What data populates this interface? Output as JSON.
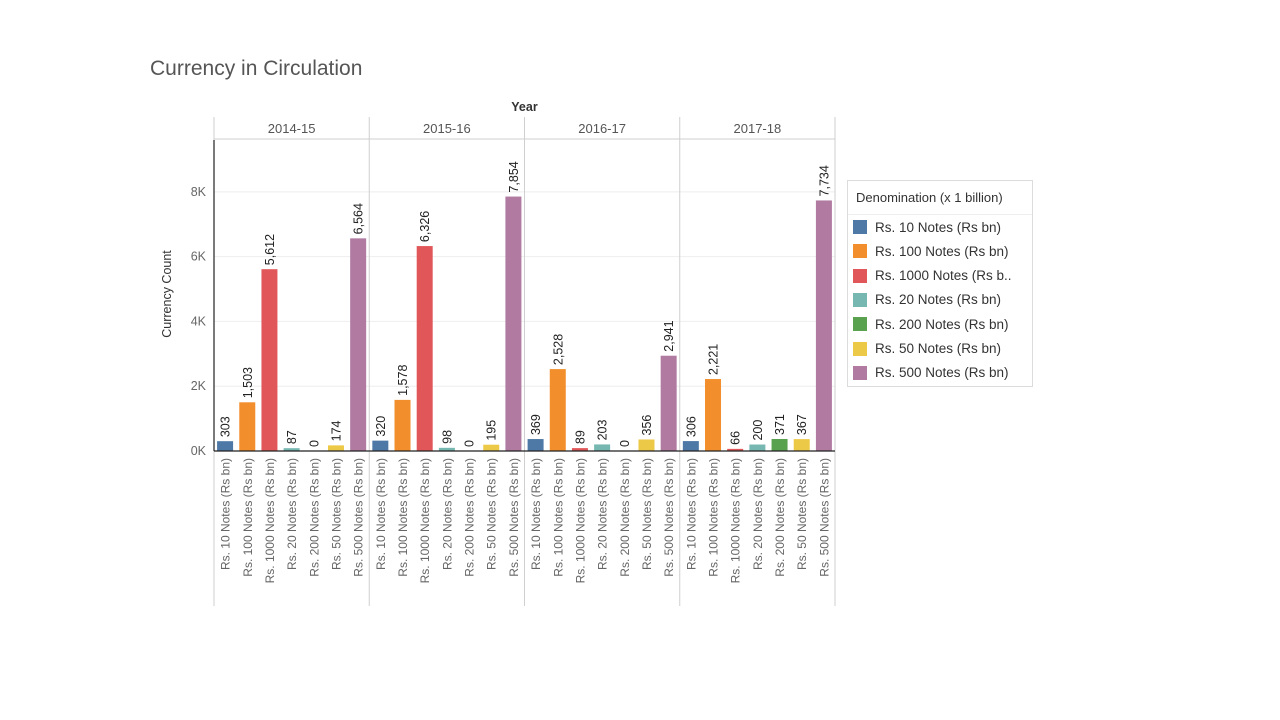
{
  "chart_data": {
    "type": "bar",
    "title": "Currency in Circulation",
    "column_header_title": "Year",
    "ylabel": "Currency Count",
    "ylim": [
      0,
      9600
    ],
    "yticks": [
      0,
      2000,
      4000,
      6000,
      8000
    ],
    "ytick_labels": [
      "0K",
      "2K",
      "4K",
      "6K",
      "8K"
    ],
    "grid": true,
    "legend_placement": "right",
    "legend_title": "Denomination (x 1 billion)",
    "categories": [
      "Rs. 10 Notes (Rs bn)",
      "Rs. 100 Notes (Rs bn)",
      "Rs. 1000 Notes (Rs bn)",
      "Rs. 20 Notes (Rs bn)",
      "Rs. 200 Notes (Rs bn)",
      "Rs. 50 Notes (Rs bn)",
      "Rs. 500 Notes (Rs bn)"
    ],
    "legend_labels": [
      "Rs. 10 Notes (Rs bn)",
      "Rs. 100 Notes (Rs bn)",
      "Rs. 1000 Notes (Rs b..",
      "Rs. 20 Notes (Rs bn)",
      "Rs. 200 Notes (Rs bn)",
      "Rs. 50 Notes (Rs bn)",
      "Rs. 500 Notes (Rs bn)"
    ],
    "colors": [
      "#4e79a7",
      "#f28e2b",
      "#e15759",
      "#76b7b2",
      "#59a14f",
      "#edc948",
      "#b07aa1"
    ],
    "panels": [
      {
        "year": "2014-15",
        "values": [
          303,
          1503,
          5612,
          87,
          0,
          174,
          6564
        ],
        "labels": [
          "303",
          "1,503",
          "5,612",
          "87",
          "0",
          "174",
          "6,564"
        ]
      },
      {
        "year": "2015-16",
        "values": [
          320,
          1578,
          6326,
          98,
          0,
          195,
          7854
        ],
        "labels": [
          "320",
          "1,578",
          "6,326",
          "98",
          "0",
          "195",
          "7,854"
        ]
      },
      {
        "year": "2016-17",
        "values": [
          369,
          2528,
          89,
          203,
          0,
          356,
          2941
        ],
        "labels": [
          "369",
          "2,528",
          "89",
          "203",
          "0",
          "356",
          "2,941"
        ]
      },
      {
        "year": "2017-18",
        "values": [
          306,
          2221,
          66,
          200,
          371,
          367,
          7734
        ],
        "labels": [
          "306",
          "2,221",
          "66",
          "200",
          "371",
          "367",
          "7,734"
        ]
      }
    ]
  }
}
